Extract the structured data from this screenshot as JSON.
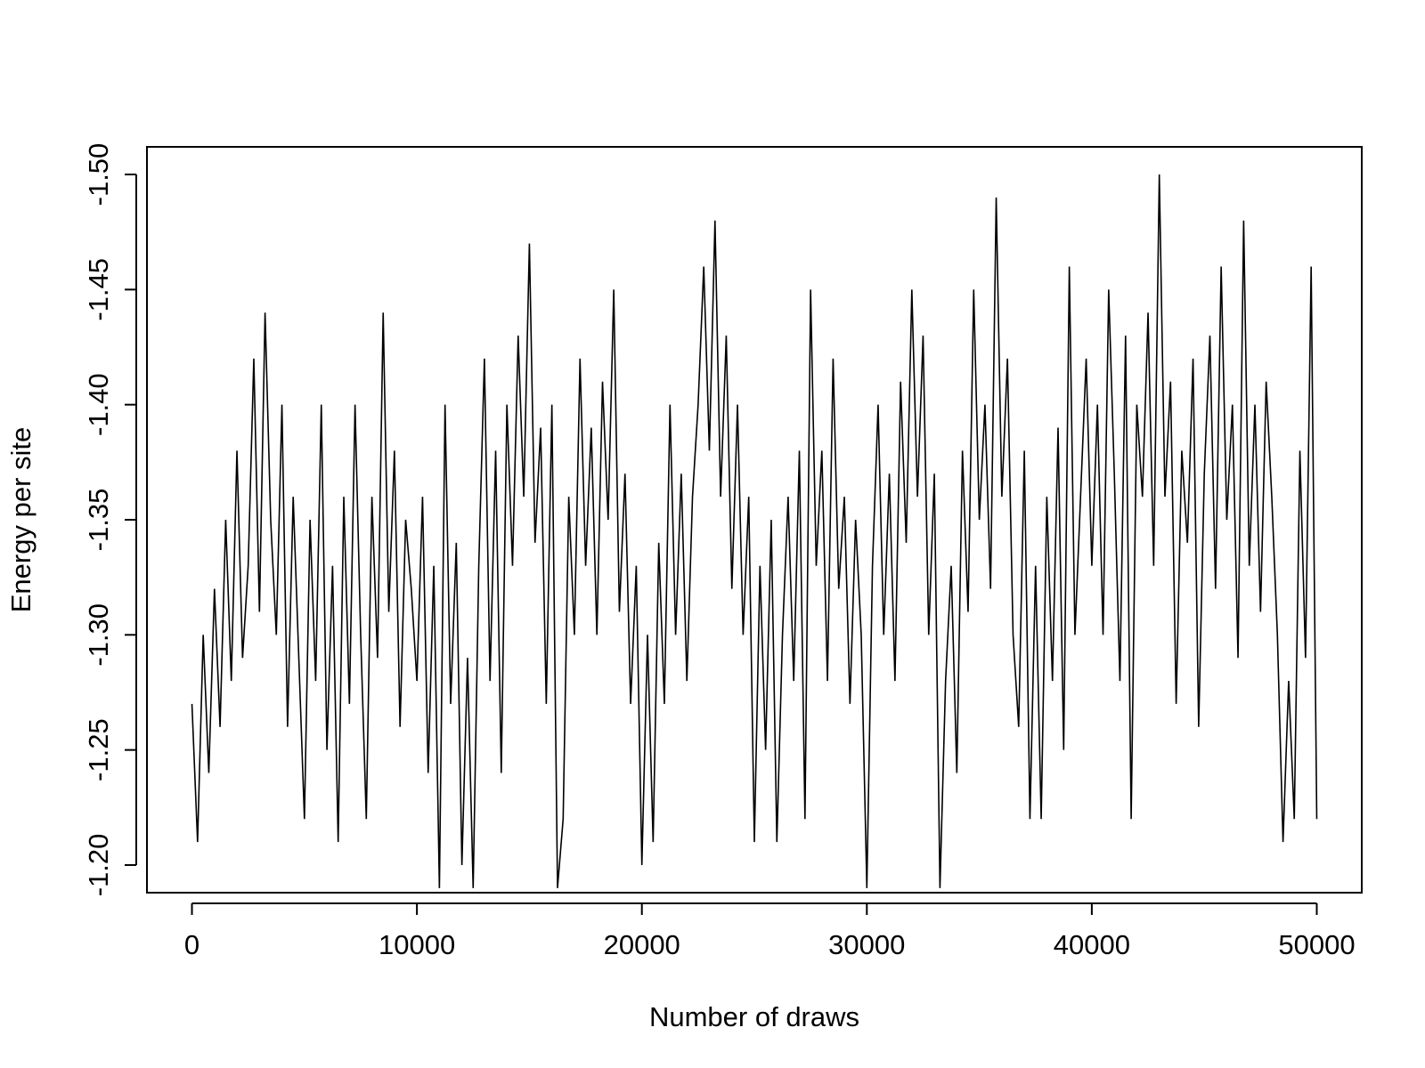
{
  "chart_data": {
    "type": "line",
    "x_label": "Number of draws",
    "y_label": "Energy per site",
    "color": "#000000",
    "xlim": [
      -2000,
      52000
    ],
    "xticks": [
      0,
      10000,
      20000,
      30000,
      40000,
      50000
    ],
    "ylim": [
      -1.188,
      -1.512
    ],
    "yticks": [
      {
        "value": -1.2,
        "label": "-1.20"
      },
      {
        "value": -1.25,
        "label": "-1.25"
      },
      {
        "value": -1.3,
        "label": "-1.30"
      },
      {
        "value": -1.35,
        "label": "-1.35"
      },
      {
        "value": -1.4,
        "label": "-1.40"
      },
      {
        "value": -1.45,
        "label": "-1.45"
      },
      {
        "value": -1.5,
        "label": "-1.50"
      }
    ],
    "x": [
      0,
      250,
      500,
      750,
      1000,
      1250,
      1500,
      1750,
      2000,
      2250,
      2500,
      2750,
      3000,
      3250,
      3500,
      3750,
      4000,
      4250,
      4500,
      4750,
      5000,
      5250,
      5500,
      5750,
      6000,
      6250,
      6500,
      6750,
      7000,
      7250,
      7500,
      7750,
      8000,
      8250,
      8500,
      8750,
      9000,
      9250,
      9500,
      9750,
      10000,
      10250,
      10500,
      10750,
      11000,
      11250,
      11500,
      11750,
      12000,
      12250,
      12500,
      12750,
      13000,
      13250,
      13500,
      13750,
      14000,
      14250,
      14500,
      14750,
      15000,
      15250,
      15500,
      15750,
      16000,
      16250,
      16500,
      16750,
      17000,
      17250,
      17500,
      17750,
      18000,
      18250,
      18500,
      18750,
      19000,
      19250,
      19500,
      19750,
      20000,
      20250,
      20500,
      20750,
      21000,
      21250,
      21500,
      21750,
      22000,
      22250,
      22500,
      22750,
      23000,
      23250,
      23500,
      23750,
      24000,
      24250,
      24500,
      24750,
      25000,
      25250,
      25500,
      25750,
      26000,
      26250,
      26500,
      26750,
      27000,
      27250,
      27500,
      27750,
      28000,
      28250,
      28500,
      28750,
      29000,
      29250,
      29500,
      29750,
      30000,
      30250,
      30500,
      30750,
      31000,
      31250,
      31500,
      31750,
      32000,
      32250,
      32500,
      32750,
      33000,
      33250,
      33500,
      33750,
      34000,
      34250,
      34500,
      34750,
      35000,
      35250,
      35500,
      35750,
      36000,
      36250,
      36500,
      36750,
      37000,
      37250,
      37500,
      37750,
      38000,
      38250,
      38500,
      38750,
      39000,
      39250,
      39500,
      39750,
      40000,
      40250,
      40500,
      40750,
      41000,
      41250,
      41500,
      41750,
      42000,
      42250,
      42500,
      42750,
      43000,
      43250,
      43500,
      43750,
      44000,
      44250,
      44500,
      44750,
      45000,
      45250,
      45500,
      45750,
      46000,
      46250,
      46500,
      46750,
      47000,
      47250,
      47500,
      47750,
      48000,
      48250,
      48500,
      48750,
      49000,
      49250,
      49500,
      49750,
      50000
    ],
    "values": [
      -1.27,
      -1.21,
      -1.3,
      -1.24,
      -1.32,
      -1.26,
      -1.35,
      -1.28,
      -1.38,
      -1.29,
      -1.33,
      -1.42,
      -1.31,
      -1.44,
      -1.35,
      -1.3,
      -1.4,
      -1.26,
      -1.36,
      -1.29,
      -1.22,
      -1.35,
      -1.28,
      -1.4,
      -1.25,
      -1.33,
      -1.21,
      -1.36,
      -1.27,
      -1.4,
      -1.3,
      -1.22,
      -1.36,
      -1.29,
      -1.44,
      -1.31,
      -1.38,
      -1.26,
      -1.35,
      -1.32,
      -1.28,
      -1.36,
      -1.24,
      -1.33,
      -1.19,
      -1.4,
      -1.27,
      -1.34,
      -1.2,
      -1.29,
      -1.19,
      -1.33,
      -1.42,
      -1.28,
      -1.38,
      -1.24,
      -1.4,
      -1.33,
      -1.43,
      -1.36,
      -1.47,
      -1.34,
      -1.39,
      -1.27,
      -1.4,
      -1.19,
      -1.22,
      -1.36,
      -1.3,
      -1.42,
      -1.33,
      -1.39,
      -1.3,
      -1.41,
      -1.35,
      -1.45,
      -1.31,
      -1.37,
      -1.27,
      -1.33,
      -1.2,
      -1.3,
      -1.21,
      -1.34,
      -1.27,
      -1.4,
      -1.3,
      -1.37,
      -1.28,
      -1.36,
      -1.4,
      -1.46,
      -1.38,
      -1.48,
      -1.36,
      -1.43,
      -1.32,
      -1.4,
      -1.3,
      -1.36,
      -1.21,
      -1.33,
      -1.25,
      -1.35,
      -1.21,
      -1.3,
      -1.36,
      -1.28,
      -1.38,
      -1.22,
      -1.45,
      -1.33,
      -1.38,
      -1.28,
      -1.42,
      -1.32,
      -1.36,
      -1.27,
      -1.35,
      -1.3,
      -1.19,
      -1.33,
      -1.4,
      -1.3,
      -1.37,
      -1.28,
      -1.41,
      -1.34,
      -1.45,
      -1.36,
      -1.43,
      -1.3,
      -1.37,
      -1.19,
      -1.28,
      -1.33,
      -1.24,
      -1.38,
      -1.31,
      -1.45,
      -1.35,
      -1.4,
      -1.32,
      -1.49,
      -1.36,
      -1.42,
      -1.3,
      -1.26,
      -1.38,
      -1.22,
      -1.33,
      -1.22,
      -1.36,
      -1.28,
      -1.39,
      -1.25,
      -1.46,
      -1.3,
      -1.36,
      -1.42,
      -1.33,
      -1.4,
      -1.3,
      -1.45,
      -1.37,
      -1.28,
      -1.43,
      -1.22,
      -1.4,
      -1.36,
      -1.44,
      -1.33,
      -1.5,
      -1.36,
      -1.41,
      -1.27,
      -1.38,
      -1.34,
      -1.42,
      -1.26,
      -1.37,
      -1.43,
      -1.32,
      -1.46,
      -1.35,
      -1.4,
      -1.29,
      -1.48,
      -1.33,
      -1.4,
      -1.31,
      -1.41,
      -1.36,
      -1.3,
      -1.21,
      -1.28,
      -1.22,
      -1.38,
      -1.29,
      -1.46,
      -1.22
    ]
  }
}
